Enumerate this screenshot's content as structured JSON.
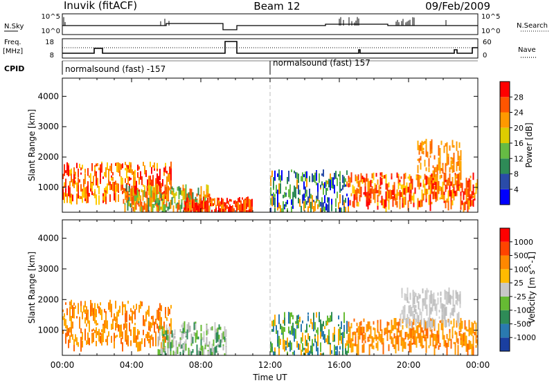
{
  "header": {
    "station": "Inuvik (fitACF)",
    "beam": "Beam 12",
    "date": "09/Feb/2009"
  },
  "strip_labels": {
    "nsky": "N.Sky",
    "freq_top": "Freq.",
    "freq_unit": "[MHz]",
    "cpid": "CPID",
    "nsearch": "N.Search",
    "nave": "Nave",
    "nsky_ticks": [
      "10^5",
      "10^0"
    ],
    "nsearch_ticks": [
      "10^5",
      "10^0"
    ],
    "freq_ticks": [
      "18",
      "8"
    ],
    "nave_ticks": [
      "60",
      "0"
    ]
  },
  "cpid_segments": [
    {
      "label": "normalsound (fast) -157",
      "start_hour": 0
    },
    {
      "label": "normalsound (fast) 157",
      "start_hour": 12
    }
  ],
  "chart_data": [
    {
      "type": "heatmap",
      "title": "Power",
      "xlabel": "",
      "ylabel": "Slant Range [km]",
      "xlim_hours": [
        0,
        24
      ],
      "ylim_km": [
        180,
        4600
      ],
      "x_ticks": [
        "00:00",
        "04:00",
        "08:00",
        "12:00",
        "16:00",
        "20:00",
        "00:00"
      ],
      "y_ticks": [
        1000,
        2000,
        3000,
        4000
      ],
      "colorbar": {
        "label": "Power [dB]",
        "ticks": [
          "4",
          "8",
          "12",
          "16",
          "20",
          "24",
          "28"
        ],
        "colors": [
          "#0000ff",
          "#2a4ba8",
          "#2e8b57",
          "#66bb44",
          "#ddcc00",
          "#ff9900",
          "#ff5500",
          "#ff0000"
        ]
      },
      "echo_regions": [
        {
          "from_h": 0.0,
          "to_h": 6.3,
          "range_km": [
            700,
            1850
          ],
          "level": "red-orange"
        },
        {
          "from_h": 3.5,
          "to_h": 8.5,
          "range_km": [
            350,
            1100
          ],
          "level": "green-orange"
        },
        {
          "from_h": 7.0,
          "to_h": 11.0,
          "range_km": [
            250,
            700
          ],
          "level": "red"
        },
        {
          "from_h": 12.0,
          "to_h": 16.5,
          "range_km": [
            300,
            1600
          ],
          "level": "green-blue"
        },
        {
          "from_h": 16.5,
          "to_h": 24.0,
          "range_km": [
            500,
            1500
          ],
          "level": "red-orange"
        },
        {
          "from_h": 20.5,
          "to_h": 23.0,
          "range_km": [
            1300,
            2600
          ],
          "level": "orange"
        }
      ]
    },
    {
      "type": "heatmap",
      "title": "Velocity",
      "xlabel": "Time UT",
      "ylabel": "Slant Range [km]",
      "xlim_hours": [
        0,
        24
      ],
      "ylim_km": [
        180,
        4600
      ],
      "x_ticks": [
        "00:00",
        "04:00",
        "08:00",
        "12:00",
        "16:00",
        "20:00",
        "00:00"
      ],
      "y_ticks": [
        1000,
        2000,
        3000,
        4000
      ],
      "colorbar": {
        "label": "Velocity [m s^-1]",
        "ticks": [
          "1000",
          "500",
          "100",
          "25",
          "-25",
          "-100",
          "-500",
          "-1000"
        ],
        "colors": [
          "#1a3fa0",
          "#2a7ab0",
          "#2e8b57",
          "#66bb33",
          "#c8c8c8",
          "#ffbb00",
          "#ff8800",
          "#ff4400",
          "#ff0000"
        ]
      },
      "echo_regions": [
        {
          "from_h": 0.0,
          "to_h": 6.3,
          "range_km": [
            600,
            2000
          ],
          "level": "orange"
        },
        {
          "from_h": 5.5,
          "to_h": 9.5,
          "range_km": [
            250,
            1300
          ],
          "level": "gray-green"
        },
        {
          "from_h": 12.0,
          "to_h": 16.5,
          "range_km": [
            250,
            1600
          ],
          "level": "green"
        },
        {
          "from_h": 16.5,
          "to_h": 24.0,
          "range_km": [
            500,
            1400
          ],
          "level": "orange"
        },
        {
          "from_h": 19.5,
          "to_h": 23.0,
          "range_km": [
            1300,
            2400
          ],
          "level": "gray"
        }
      ]
    }
  ]
}
